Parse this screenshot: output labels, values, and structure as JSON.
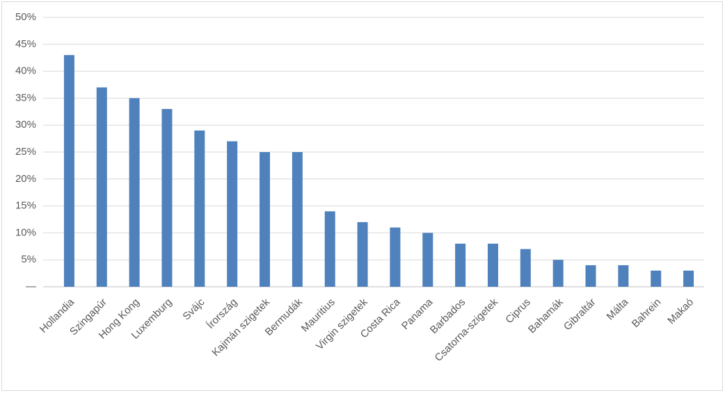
{
  "chart_data": {
    "type": "bar",
    "categories": [
      "Hollandia",
      "Szingapúr",
      "Hong Kong",
      "Luxemburg",
      "Svájc",
      "Írország",
      "Kajmán szigetek",
      "Bermudák",
      "Mauritius",
      "Virgin szigetek",
      "Costa Rica",
      "Panama",
      "Barbados",
      "Csatorna-szigetek",
      "Ciprus",
      "Bahamák",
      "Gibraltár",
      "Málta",
      "Bahrein",
      "Makaó"
    ],
    "values": [
      43,
      37,
      35,
      33,
      29,
      27,
      25,
      25,
      14,
      12,
      11,
      10,
      8,
      8,
      7,
      5,
      4,
      4,
      3,
      3
    ],
    "color": "#4f81bd",
    "ylim": [
      0,
      50
    ],
    "yticks": [
      {
        "value": 0,
        "label": "—"
      },
      {
        "value": 5,
        "label": "5%"
      },
      {
        "value": 10,
        "label": "10%"
      },
      {
        "value": 15,
        "label": "15%"
      },
      {
        "value": 20,
        "label": "20%"
      },
      {
        "value": 25,
        "label": "25%"
      },
      {
        "value": 30,
        "label": "30%"
      },
      {
        "value": 35,
        "label": "35%"
      },
      {
        "value": 40,
        "label": "40%"
      },
      {
        "value": 45,
        "label": "45%"
      },
      {
        "value": 50,
        "label": "50%"
      }
    ],
    "grid": true
  }
}
